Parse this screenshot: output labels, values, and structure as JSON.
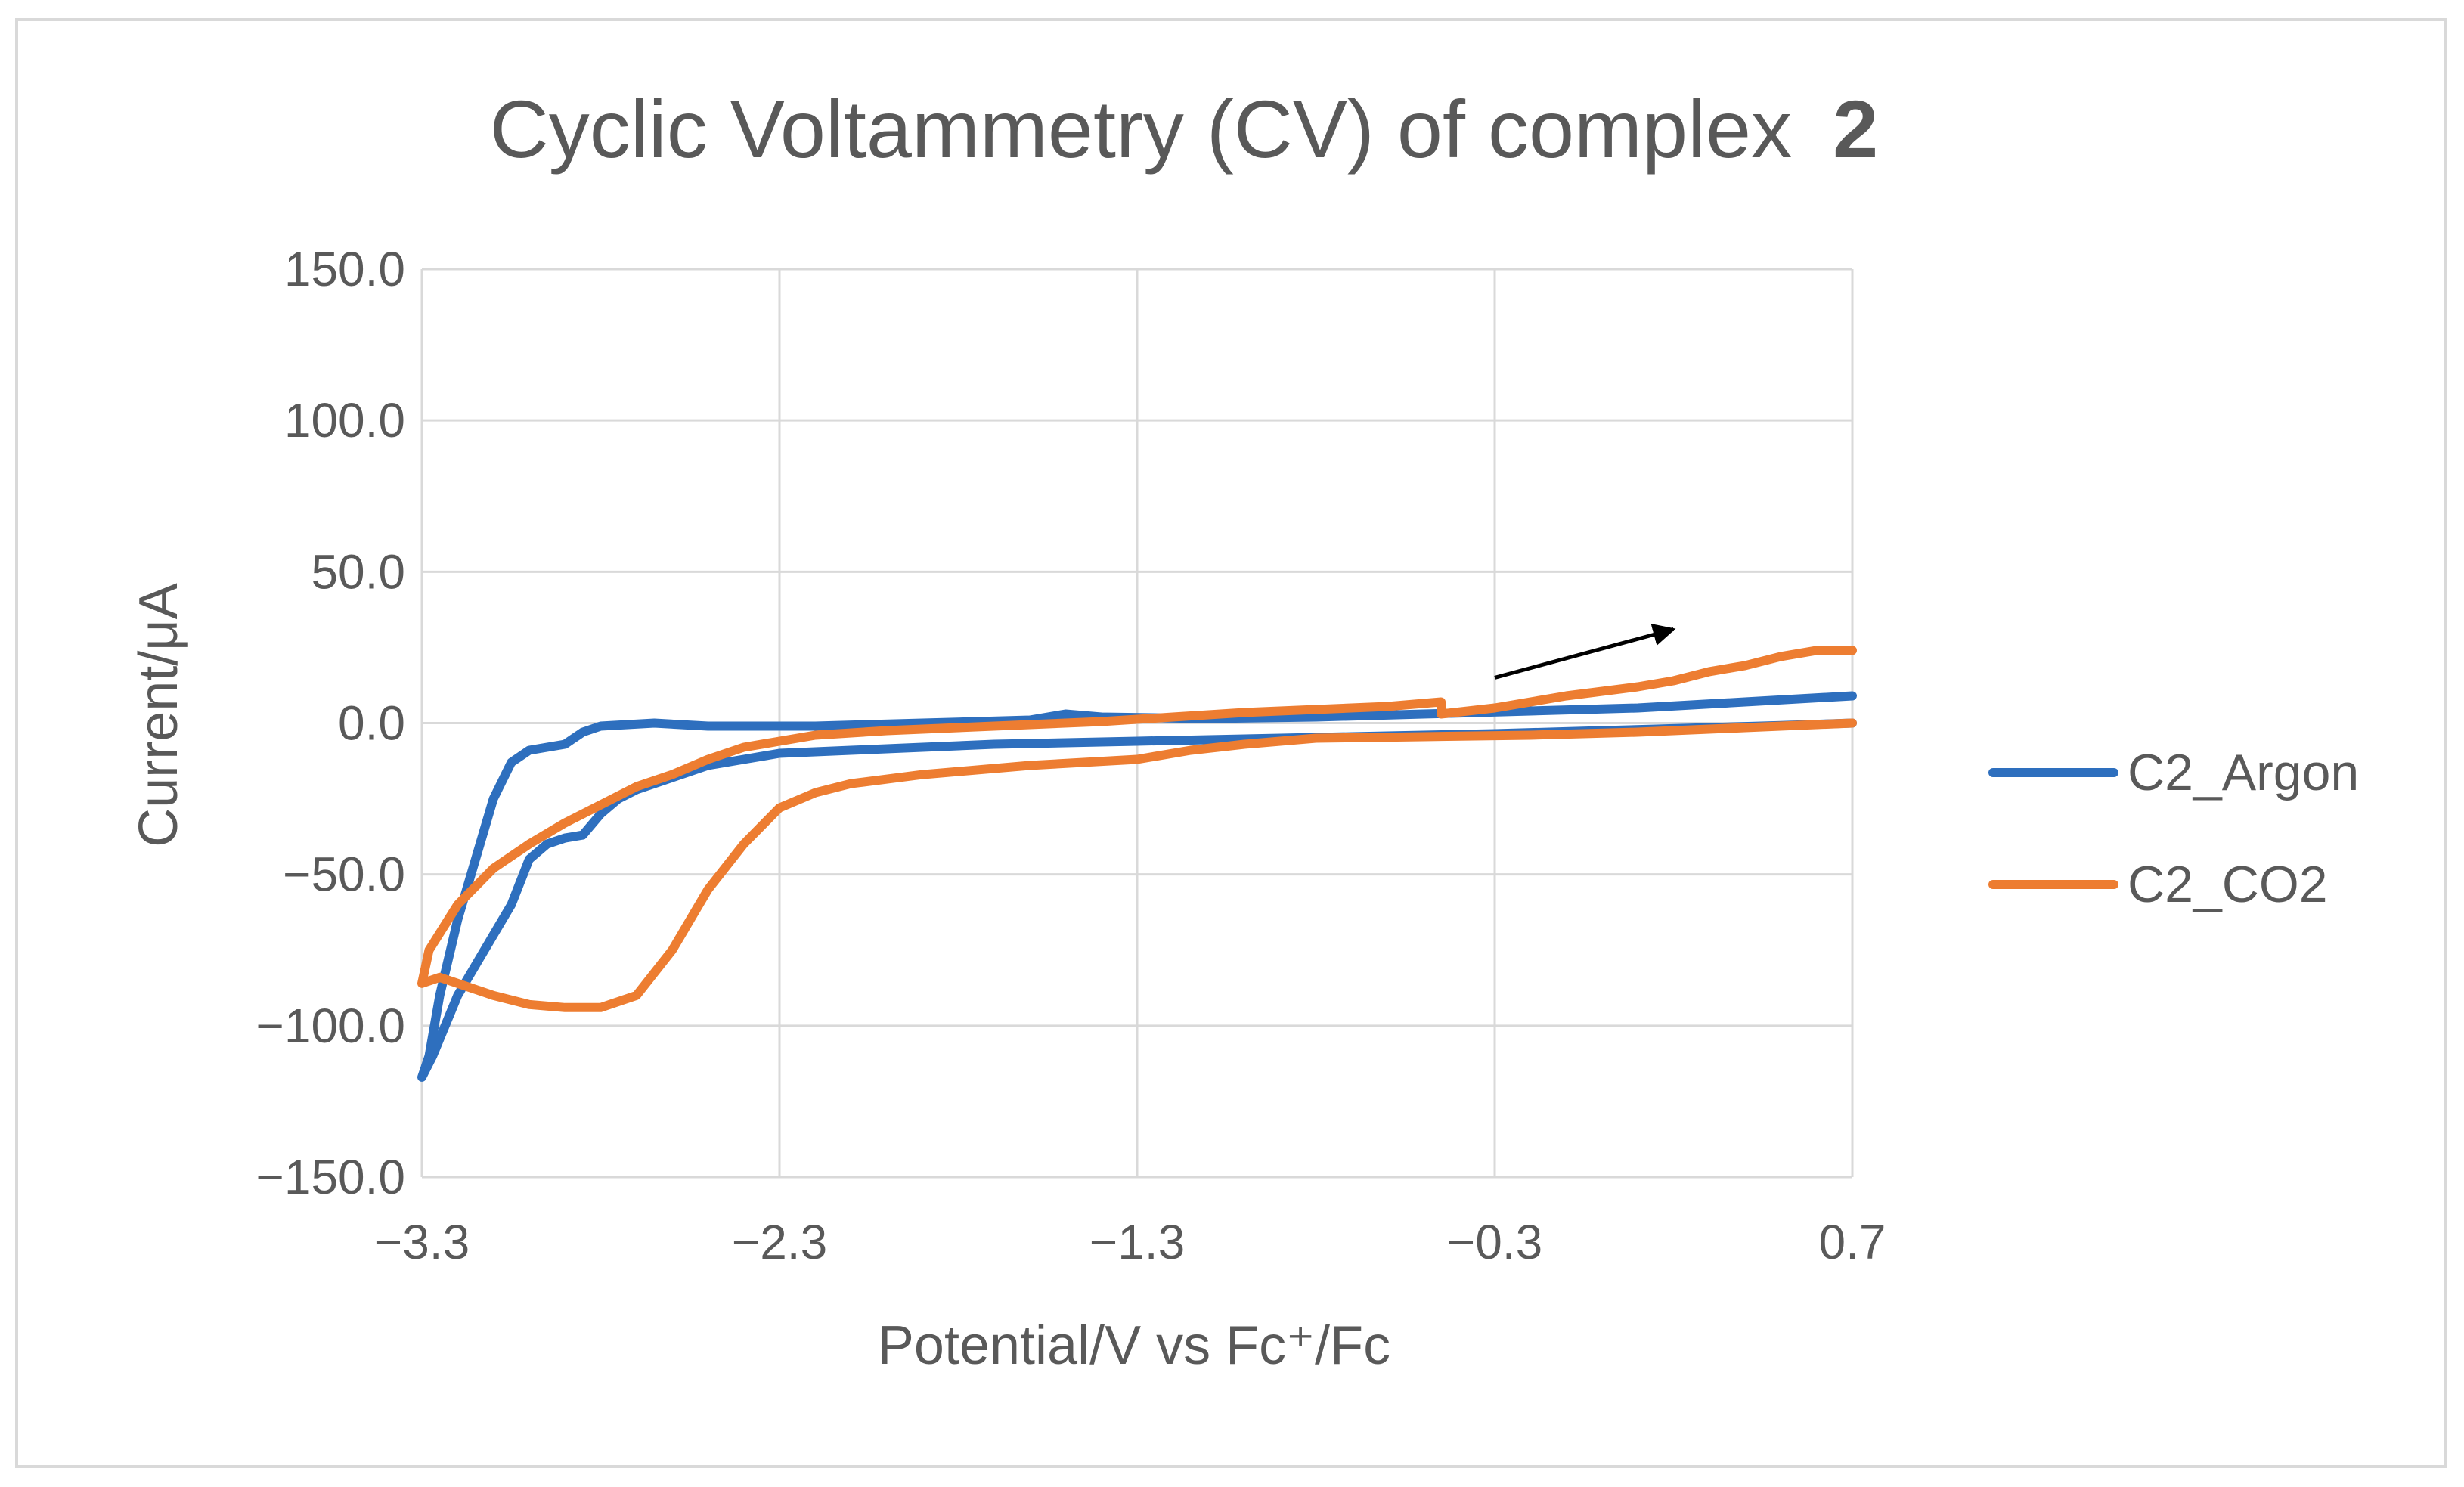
{
  "chart_data": {
    "type": "line",
    "title": "Cyclic Voltammetry (CV) of complex",
    "title_bold_suffix": "2",
    "xlabel": "Potential/V vs Fc⁺/Fc",
    "ylabel": "Current/μA",
    "xlim": [
      -3.3,
      0.7
    ],
    "ylim": [
      -150,
      150
    ],
    "x_ticks": [
      -3.3,
      -2.3,
      -1.3,
      -0.3,
      0.7
    ],
    "x_tick_labels": [
      "−3.3",
      "−2.3",
      "−1.3",
      "−0.3",
      "0.7"
    ],
    "y_ticks": [
      150,
      100,
      50,
      0,
      -50,
      -100,
      -150
    ],
    "y_tick_labels": [
      "150.0",
      "100.0",
      "50.0",
      "0.0",
      "−50.0",
      "−100.0",
      "−150.0"
    ],
    "grid": true,
    "legend_position": "right",
    "annotation": "arrow indicating scan direction (positive-going)",
    "arrow": {
      "from": [
        -0.3,
        15
      ],
      "to": [
        0.2,
        31
      ]
    },
    "series": [
      {
        "name": "C2_Argon",
        "color": "#2e6fbe",
        "points": [
          [
            0.7,
            9
          ],
          [
            0.4,
            7
          ],
          [
            0.1,
            5
          ],
          [
            -0.2,
            4
          ],
          [
            -0.5,
            3
          ],
          [
            -0.8,
            2
          ],
          [
            -1.1,
            1.5
          ],
          [
            -1.4,
            2
          ],
          [
            -1.5,
            3
          ],
          [
            -1.6,
            1
          ],
          [
            -1.9,
            0
          ],
          [
            -2.2,
            -1
          ],
          [
            -2.5,
            -1
          ],
          [
            -2.65,
            0
          ],
          [
            -2.8,
            -1
          ],
          [
            -2.85,
            -3
          ],
          [
            -2.9,
            -7
          ],
          [
            -2.95,
            -8
          ],
          [
            -3.0,
            -9
          ],
          [
            -3.05,
            -13
          ],
          [
            -3.1,
            -25
          ],
          [
            -3.15,
            -45
          ],
          [
            -3.2,
            -65
          ],
          [
            -3.25,
            -90
          ],
          [
            -3.28,
            -110
          ],
          [
            -3.3,
            -117
          ],
          [
            -3.27,
            -110
          ],
          [
            -3.2,
            -90
          ],
          [
            -3.1,
            -70
          ],
          [
            -3.05,
            -60
          ],
          [
            -3.0,
            -45
          ],
          [
            -2.95,
            -40
          ],
          [
            -2.9,
            -38
          ],
          [
            -2.85,
            -37
          ],
          [
            -2.8,
            -30
          ],
          [
            -2.75,
            -25
          ],
          [
            -2.7,
            -22
          ],
          [
            -2.6,
            -18
          ],
          [
            -2.5,
            -14
          ],
          [
            -2.4,
            -12
          ],
          [
            -2.3,
            -10
          ],
          [
            -2.1,
            -9
          ],
          [
            -1.9,
            -8
          ],
          [
            -1.7,
            -7
          ],
          [
            -1.5,
            -6.5
          ],
          [
            -1.3,
            -6
          ],
          [
            -1.1,
            -5.5
          ],
          [
            -0.9,
            -5
          ],
          [
            -0.7,
            -4.5
          ],
          [
            -0.5,
            -4
          ],
          [
            -0.3,
            -3.5
          ],
          [
            0.0,
            -2.5
          ],
          [
            0.3,
            -1.5
          ],
          [
            0.5,
            -0.8
          ],
          [
            0.7,
            0
          ]
        ]
      },
      {
        "name": "C2_CO2",
        "color": "#ed7d31",
        "points": [
          [
            0.7,
            0
          ],
          [
            0.4,
            -1.5
          ],
          [
            0.1,
            -3
          ],
          [
            -0.2,
            -4
          ],
          [
            -0.5,
            -4.5
          ],
          [
            -0.8,
            -5
          ],
          [
            -1.0,
            -7
          ],
          [
            -1.15,
            -9
          ],
          [
            -1.3,
            -12
          ],
          [
            -1.6,
            -14
          ],
          [
            -1.9,
            -17
          ],
          [
            -2.1,
            -20
          ],
          [
            -2.2,
            -23
          ],
          [
            -2.3,
            -28
          ],
          [
            -2.4,
            -40
          ],
          [
            -2.5,
            -55
          ],
          [
            -2.6,
            -75
          ],
          [
            -2.7,
            -90
          ],
          [
            -2.8,
            -94
          ],
          [
            -2.9,
            -94
          ],
          [
            -3.0,
            -93
          ],
          [
            -3.1,
            -90
          ],
          [
            -3.2,
            -86
          ],
          [
            -3.25,
            -84
          ],
          [
            -3.3,
            -86
          ],
          [
            -3.28,
            -75
          ],
          [
            -3.2,
            -60
          ],
          [
            -3.1,
            -48
          ],
          [
            -3.0,
            -40
          ],
          [
            -2.9,
            -33
          ],
          [
            -2.8,
            -27
          ],
          [
            -2.7,
            -21
          ],
          [
            -2.6,
            -17
          ],
          [
            -2.5,
            -12
          ],
          [
            -2.4,
            -8
          ],
          [
            -2.3,
            -6
          ],
          [
            -2.2,
            -4
          ],
          [
            -2.0,
            -2.5
          ],
          [
            -1.8,
            -1.5
          ],
          [
            -1.6,
            -0.5
          ],
          [
            -1.4,
            0.5
          ],
          [
            -1.2,
            2
          ],
          [
            -1.0,
            3.5
          ],
          [
            -0.8,
            4.5
          ],
          [
            -0.6,
            5.5
          ],
          [
            -0.45,
            7
          ],
          [
            -0.45,
            3
          ],
          [
            -0.3,
            5
          ],
          [
            -0.1,
            9
          ],
          [
            0.1,
            12
          ],
          [
            0.2,
            14
          ],
          [
            0.3,
            17
          ],
          [
            0.4,
            19
          ],
          [
            0.5,
            22
          ],
          [
            0.6,
            24
          ],
          [
            0.7,
            24
          ]
        ]
      }
    ]
  }
}
